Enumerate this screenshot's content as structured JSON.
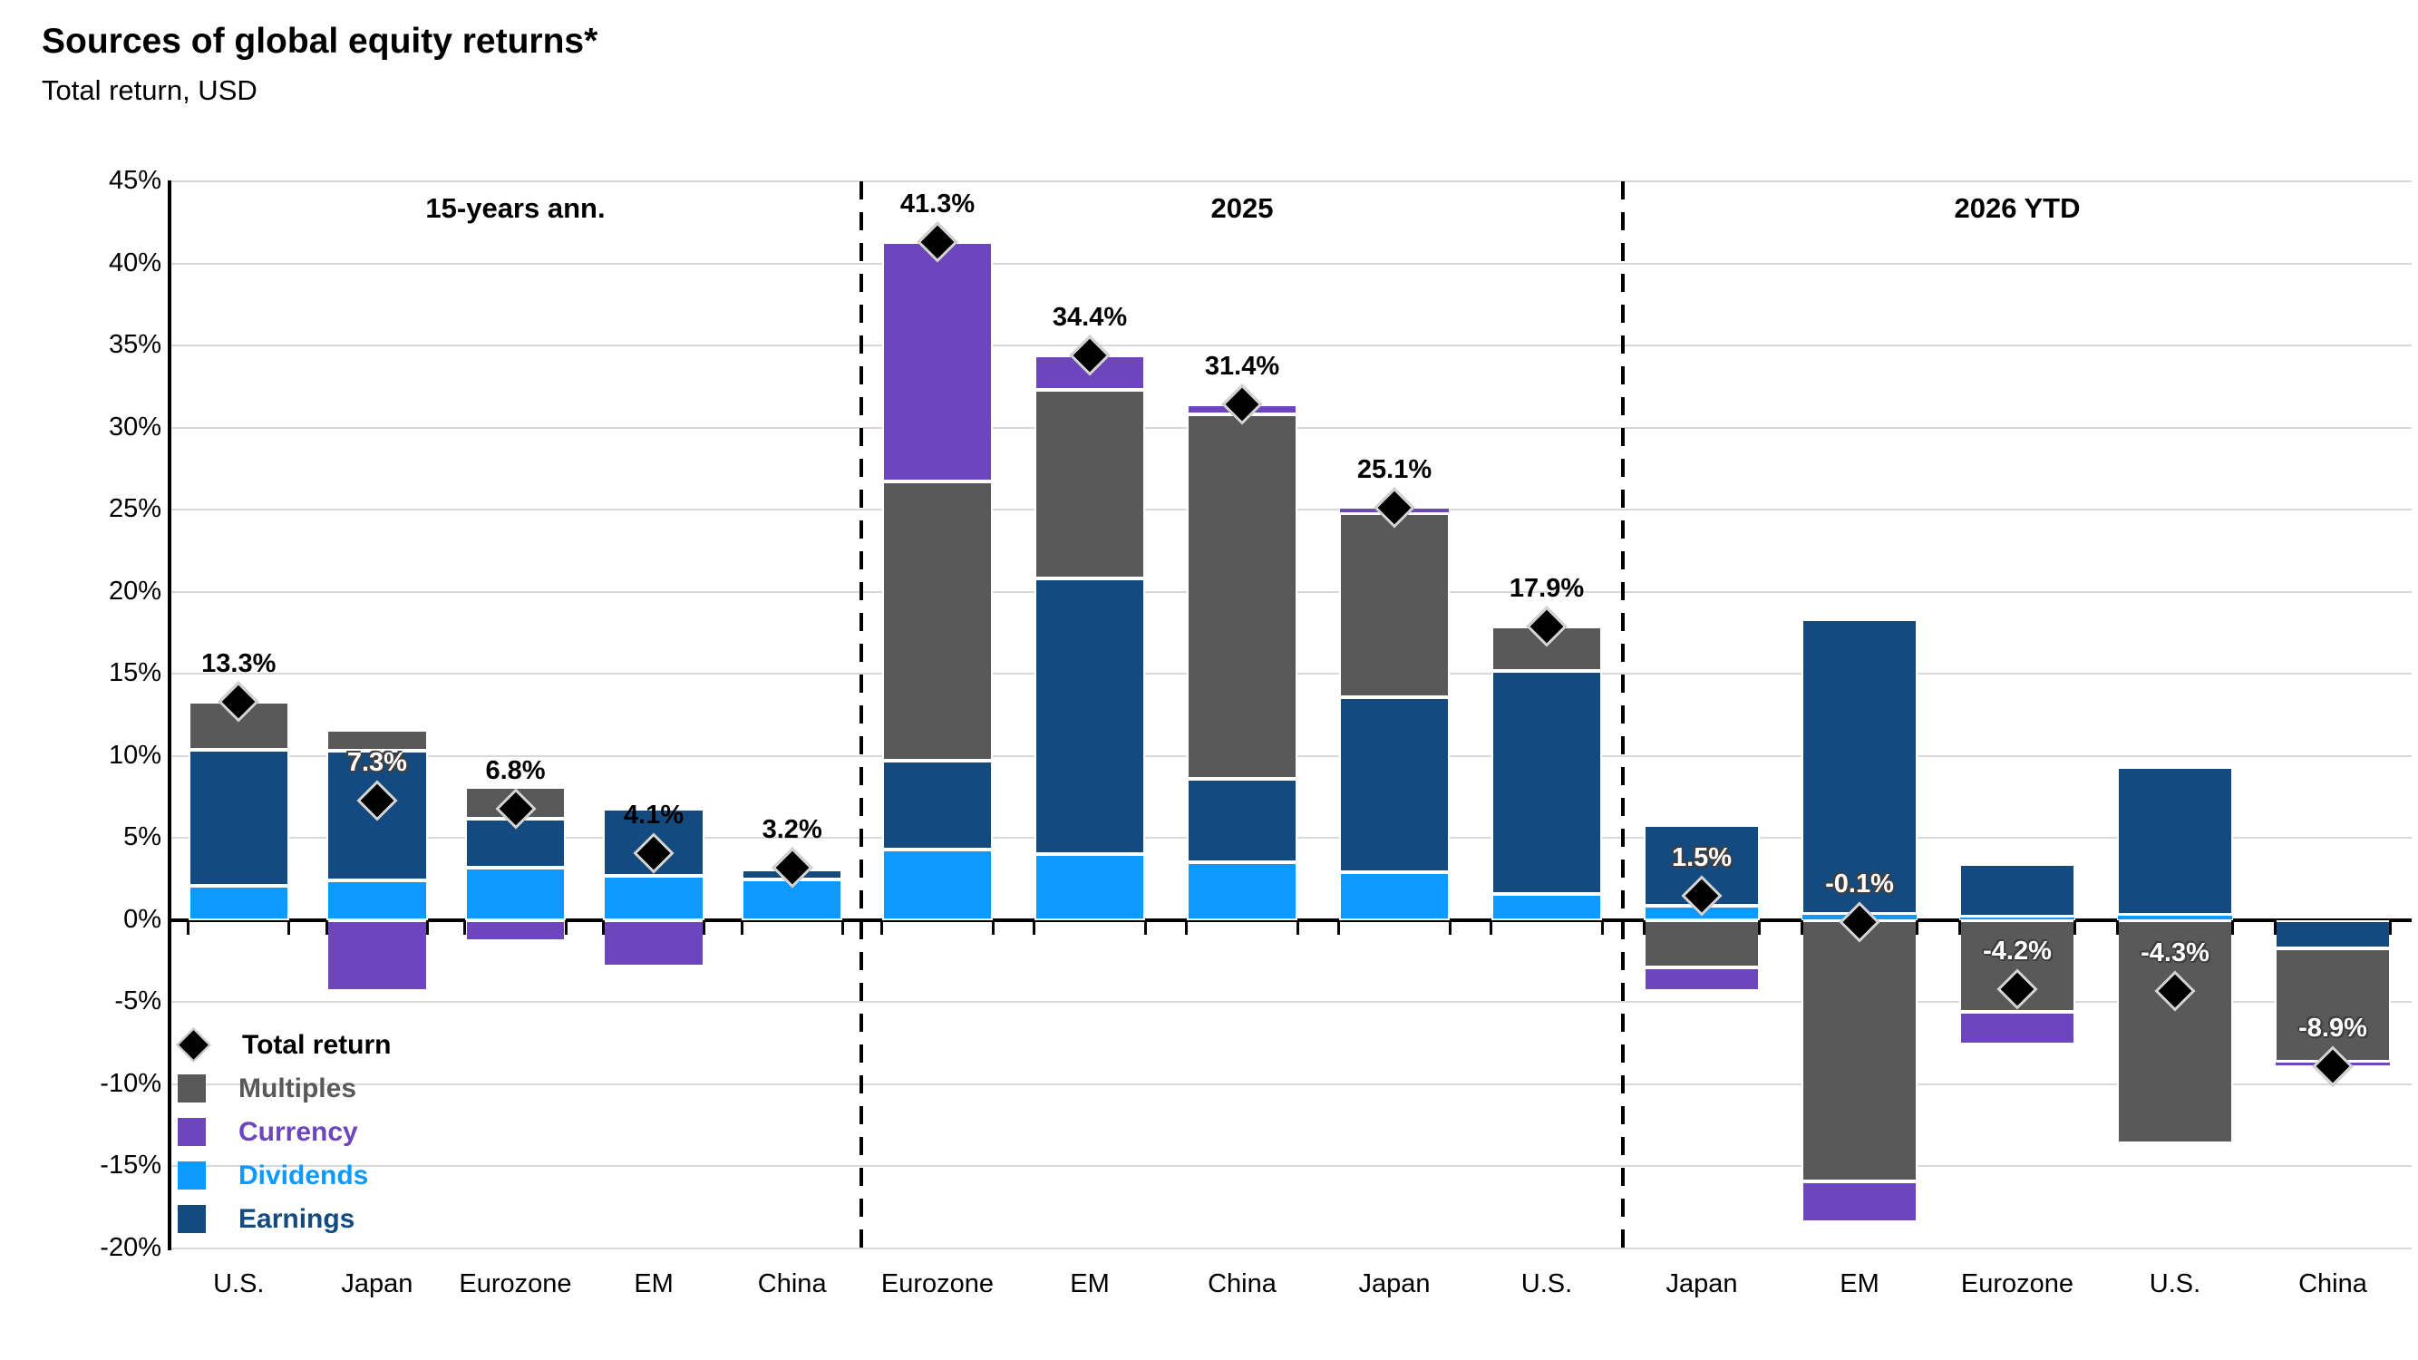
{
  "header": {
    "title": "Sources of global equity returns*",
    "subtitle": "Total return, USD"
  },
  "legend": {
    "items": [
      {
        "label": "Total return",
        "type": "diamond",
        "color": "#000000"
      },
      {
        "label": "Multiples",
        "type": "swatch",
        "color": "#595959"
      },
      {
        "label": "Currency",
        "type": "swatch",
        "color": "#6D45BC"
      },
      {
        "label": "Dividends",
        "type": "swatch",
        "color": "#0D99FF"
      },
      {
        "label": "Earnings",
        "type": "swatch",
        "color": "#134A80"
      }
    ]
  },
  "chart_data": {
    "type": "bar",
    "stacked": true,
    "title": "Sources of global equity returns*",
    "subtitle": "Total return, USD",
    "ylim": [
      -20,
      45
    ],
    "ytick_step": 5,
    "ytick_suffix": "%",
    "grid": true,
    "legend_position": "inside-bottom-left",
    "marker": "Total return shown as black diamond at stacked total",
    "segment_order": [
      "dividends",
      "earnings",
      "multiples",
      "currency"
    ],
    "colors": {
      "dividends": "#0D99FF",
      "earnings": "#134A80",
      "multiples": "#595959",
      "currency": "#6D45BC",
      "marker": "#000000",
      "gridline": "#D9D9D9",
      "axis": "#000000"
    },
    "groups": [
      {
        "title": "15-years ann.",
        "bars": [
          {
            "label": "U.S.",
            "dividends": 2.1,
            "earnings": 8.3,
            "multiples": 2.9,
            "currency": 0.0,
            "total": 13.3,
            "total_label": "13.3%",
            "label_style": "dark"
          },
          {
            "label": "Japan",
            "dividends": 2.4,
            "earnings": 7.9,
            "multiples": 1.3,
            "currency": -4.3,
            "total": 7.3,
            "total_label": "7.3%",
            "label_style": "light"
          },
          {
            "label": "Eurozone",
            "dividends": 3.2,
            "earnings": 3.0,
            "multiples": 1.9,
            "currency": -1.3,
            "total": 6.8,
            "total_label": "6.8%",
            "label_style": "dark"
          },
          {
            "label": "EM",
            "dividends": 2.7,
            "earnings": 4.1,
            "multiples": 0.1,
            "currency": -2.8,
            "total": 4.1,
            "total_label": "4.1%",
            "label_style": "dark"
          },
          {
            "label": "China",
            "dividends": 2.5,
            "earnings": 0.6,
            "multiples": 0.1,
            "currency": 0.0,
            "total": 3.2,
            "total_label": "3.2%",
            "label_style": "dark"
          }
        ]
      },
      {
        "title": "2025",
        "bars": [
          {
            "label": "Eurozone",
            "dividends": 4.3,
            "earnings": 5.4,
            "multiples": 17.0,
            "currency": 14.6,
            "total": 41.3,
            "total_label": "41.3%",
            "label_style": "dark"
          },
          {
            "label": "EM",
            "dividends": 4.0,
            "earnings": 16.8,
            "multiples": 11.5,
            "currency": 2.1,
            "total": 34.4,
            "total_label": "34.4%",
            "label_style": "dark"
          },
          {
            "label": "China",
            "dividends": 3.5,
            "earnings": 5.1,
            "multiples": 22.2,
            "currency": 0.6,
            "total": 31.4,
            "total_label": "31.4%",
            "label_style": "dark"
          },
          {
            "label": "Japan",
            "dividends": 2.9,
            "earnings": 10.7,
            "multiples": 11.2,
            "currency": 0.3,
            "total": 25.1,
            "total_label": "25.1%",
            "label_style": "dark"
          },
          {
            "label": "U.S.",
            "dividends": 1.6,
            "earnings": 13.6,
            "multiples": 2.7,
            "currency": 0.0,
            "total": 17.9,
            "total_label": "17.9%",
            "label_style": "dark"
          }
        ]
      },
      {
        "title": "2026 YTD",
        "bars": [
          {
            "label": "Japan",
            "dividends": 0.9,
            "earnings": 4.9,
            "multiples": -2.9,
            "currency": -1.4,
            "total": 1.5,
            "total_label": "1.5%",
            "label_style": "light"
          },
          {
            "label": "EM",
            "dividends": 0.4,
            "earnings": 17.9,
            "multiples": -15.9,
            "currency": -2.5,
            "total": -0.1,
            "total_label": "-0.1%",
            "label_style": "light"
          },
          {
            "label": "Eurozone",
            "dividends": 0.2,
            "earnings": 3.2,
            "multiples": -5.6,
            "currency": -2.0,
            "total": -4.2,
            "total_label": "-4.2%",
            "label_style": "light"
          },
          {
            "label": "U.S.",
            "dividends": 0.3,
            "earnings": 9.0,
            "multiples": -13.6,
            "currency": 0.0,
            "total": -4.3,
            "total_label": "-4.3%",
            "label_style": "light"
          },
          {
            "label": "China",
            "dividends": 0.0,
            "earnings": -1.7,
            "multiples": -6.9,
            "currency": -0.3,
            "total": -8.9,
            "total_label": "-8.9%",
            "label_style": "light"
          }
        ]
      }
    ]
  }
}
